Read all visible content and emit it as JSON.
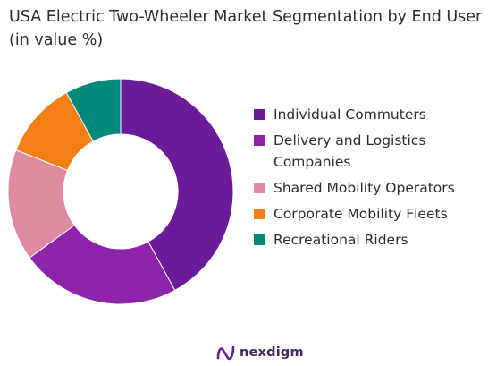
{
  "chart_data": {
    "type": "pie",
    "style": "donut",
    "title": "USA Electric Two-Wheeler Market Segmentation by End User (in value %)",
    "legend_position": "right",
    "categories": [
      "Individual Commuters",
      "Delivery and Logistics Companies",
      "Shared Mobility Operators",
      "Corporate Mobility Fleets",
      "Recreational Riders"
    ],
    "values": [
      42,
      23,
      16,
      11,
      8
    ],
    "colors": [
      "#6a1b9a",
      "#8e24aa",
      "#e08aa0",
      "#f57f17",
      "#00897b"
    ]
  },
  "brand": {
    "logo_text": "nexdigm",
    "logo_color": "#3d2a5c"
  }
}
